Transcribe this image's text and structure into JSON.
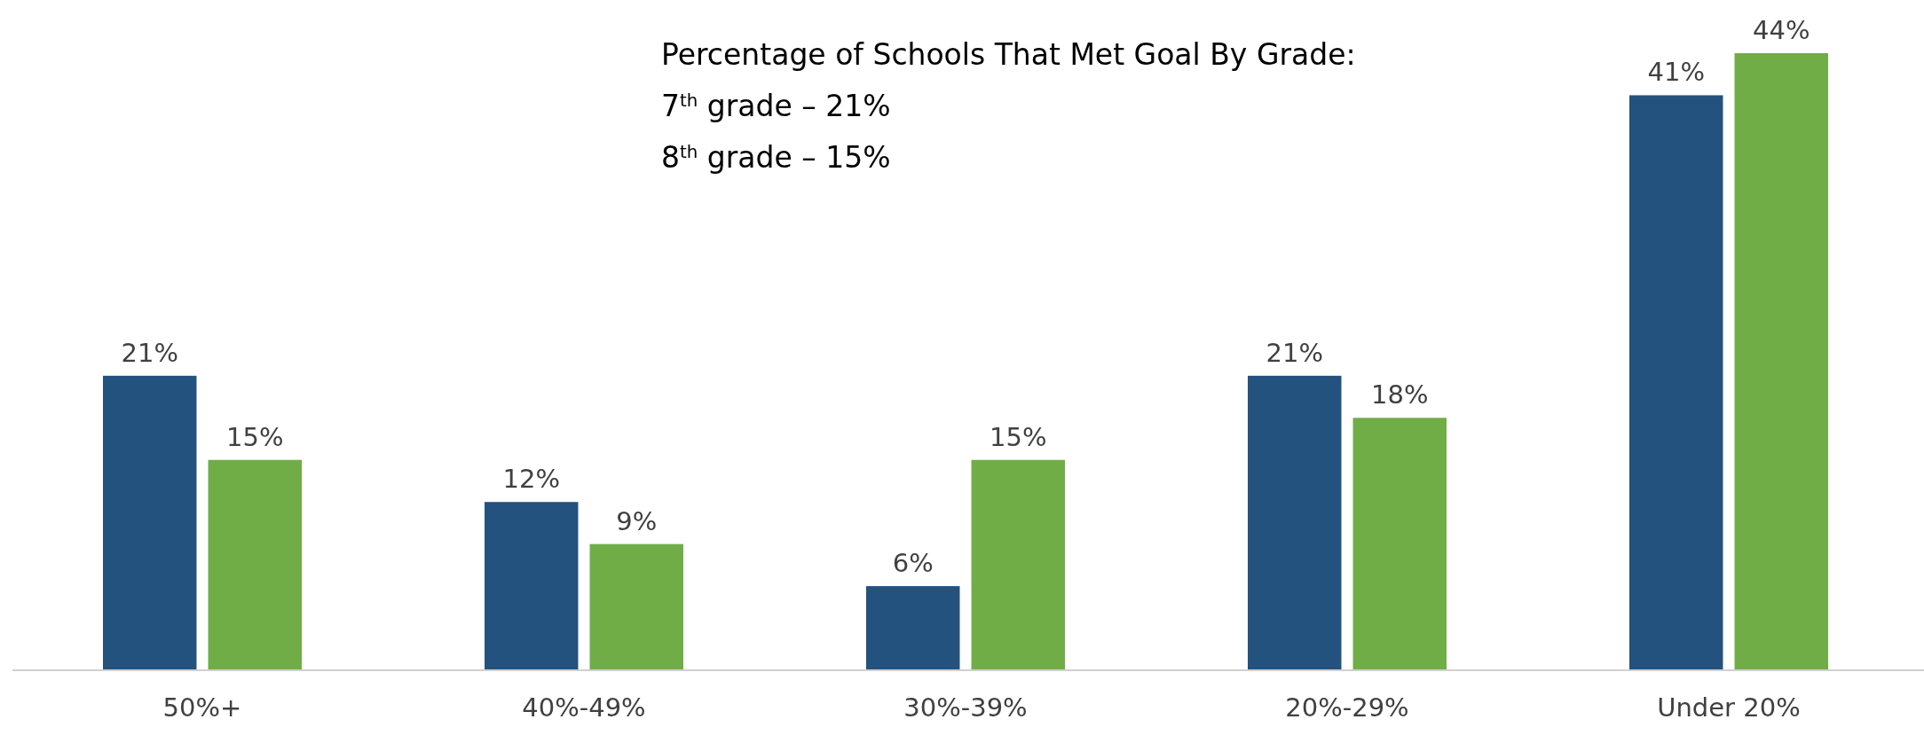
{
  "chart_data": {
    "type": "bar",
    "categories": [
      "50%+",
      "40%-49%",
      "30%-39%",
      "20%-29%",
      "Under 20%"
    ],
    "series": [
      {
        "color": "#23527f",
        "values": [
          21,
          12,
          6,
          21,
          41
        ],
        "value_labels": [
          "21%",
          "12%",
          "6%",
          "21%",
          "41%"
        ]
      },
      {
        "color": "#70ad47",
        "values": [
          15,
          9,
          15,
          18,
          44
        ],
        "value_labels": [
          "15%",
          "9%",
          "15%",
          "18%",
          "44%"
        ]
      }
    ],
    "annotations": [
      "Percentage of Schools That Met Goal By Grade:",
      "7$^{th}$ grade – 21%",
      "8$^{th}$ grade – 15%"
    ]
  }
}
